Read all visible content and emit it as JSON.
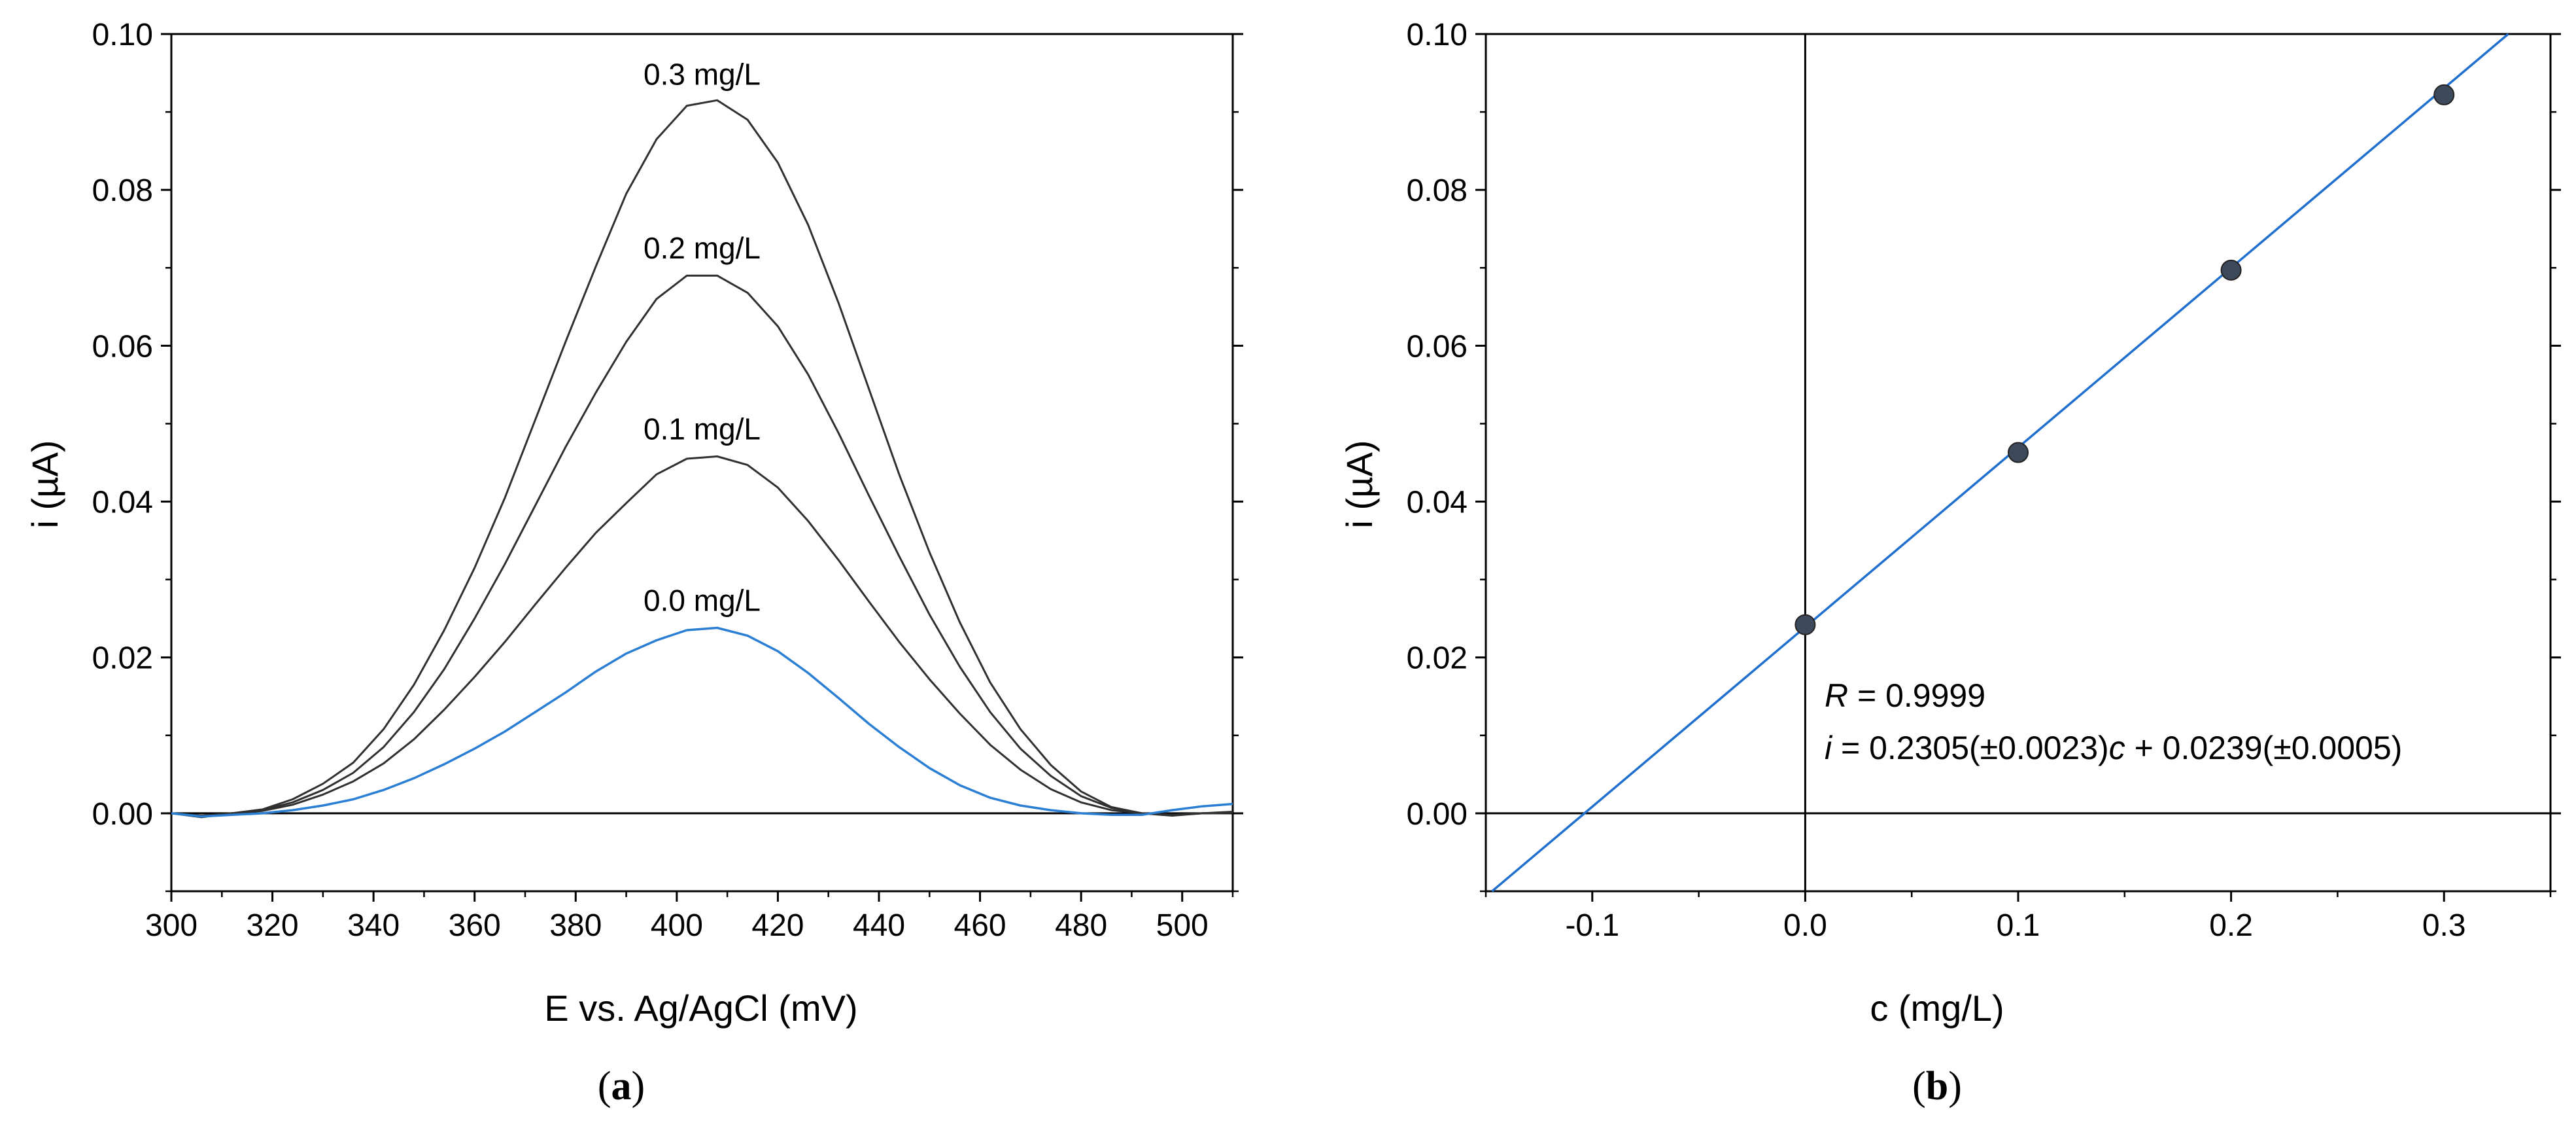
{
  "chart_data": [
    {
      "panel": "a",
      "panel_label": {
        "open": "(",
        "letter": "a",
        "close": ")"
      },
      "type": "line",
      "xlabel": "E vs. Ag/AgCl (mV)",
      "ylabel": "i (µA)",
      "xlim": [
        300,
        510
      ],
      "ylim": [
        -0.01,
        0.1
      ],
      "xticks": [
        300,
        320,
        340,
        360,
        380,
        400,
        420,
        440,
        460,
        480,
        500
      ],
      "xtick_labels": [
        "300",
        "320",
        "340",
        "360",
        "380",
        "400",
        "420",
        "440",
        "460",
        "480",
        "500"
      ],
      "yticks": [
        0.0,
        0.02,
        0.04,
        0.06,
        0.08,
        0.1
      ],
      "ytick_labels": [
        "0.00",
        "0.02",
        "0.04",
        "0.06",
        "0.08",
        "0.10"
      ],
      "zero_line": true,
      "series": [
        {
          "name": "0.3 mg/L",
          "color": "#303030",
          "x": [
            300,
            306,
            312,
            318,
            324,
            330,
            336,
            342,
            348,
            354,
            360,
            366,
            372,
            378,
            384,
            390,
            396,
            402,
            408,
            414,
            420,
            426,
            432,
            438,
            444,
            450,
            456,
            462,
            468,
            474,
            480,
            486,
            492,
            498,
            504,
            510
          ],
          "y": [
            0.0,
            -0.0005,
            0.0,
            0.0005,
            0.0018,
            0.0038,
            0.0065,
            0.0108,
            0.0165,
            0.0235,
            0.0315,
            0.0405,
            0.0505,
            0.0605,
            0.0702,
            0.0795,
            0.0865,
            0.0908,
            0.0915,
            0.089,
            0.0835,
            0.0755,
            0.0655,
            0.0545,
            0.0435,
            0.0335,
            0.0245,
            0.0168,
            0.0108,
            0.0062,
            0.0028,
            0.0008,
            0.0,
            -0.0003,
            0.0,
            0.0002
          ]
        },
        {
          "name": "0.2 mg/L",
          "color": "#303030",
          "x": [
            300,
            306,
            312,
            318,
            324,
            330,
            336,
            342,
            348,
            354,
            360,
            366,
            372,
            378,
            384,
            390,
            396,
            402,
            408,
            414,
            420,
            426,
            432,
            438,
            444,
            450,
            456,
            462,
            468,
            474,
            480,
            486,
            492,
            498,
            504,
            510
          ],
          "y": [
            0.0,
            -0.0004,
            0.0,
            0.0004,
            0.0014,
            0.003,
            0.0052,
            0.0085,
            0.013,
            0.0185,
            0.025,
            0.032,
            0.0395,
            0.047,
            0.054,
            0.0605,
            0.066,
            0.069,
            0.069,
            0.0668,
            0.0625,
            0.0563,
            0.0488,
            0.0408,
            0.033,
            0.0255,
            0.0188,
            0.013,
            0.0083,
            0.0048,
            0.0022,
            0.0007,
            0.0,
            -0.0002,
            0.0,
            0.0001
          ]
        },
        {
          "name": "0.1 mg/L",
          "color": "#303030",
          "x": [
            300,
            306,
            312,
            318,
            324,
            330,
            336,
            342,
            348,
            354,
            360,
            366,
            372,
            378,
            384,
            390,
            396,
            402,
            408,
            414,
            420,
            426,
            432,
            438,
            444,
            450,
            456,
            462,
            468,
            474,
            480,
            486,
            492,
            498,
            504,
            510
          ],
          "y": [
            0.0,
            -0.0003,
            0.0,
            0.0003,
            0.0011,
            0.0024,
            0.0041,
            0.0064,
            0.0095,
            0.0133,
            0.0175,
            0.022,
            0.0268,
            0.0315,
            0.036,
            0.0398,
            0.0435,
            0.0455,
            0.0458,
            0.0447,
            0.0418,
            0.0375,
            0.0325,
            0.0272,
            0.022,
            0.0172,
            0.0128,
            0.0088,
            0.0056,
            0.0031,
            0.0014,
            0.0004,
            0.0,
            -0.0002,
            0.0,
            0.0001
          ]
        },
        {
          "name": "0.0 mg/L",
          "color": "#2a7fd4",
          "x": [
            300,
            306,
            312,
            318,
            324,
            330,
            336,
            342,
            348,
            354,
            360,
            366,
            372,
            378,
            384,
            390,
            396,
            402,
            408,
            414,
            420,
            426,
            432,
            438,
            444,
            450,
            456,
            462,
            468,
            474,
            480,
            486,
            492,
            498,
            504,
            510
          ],
          "y": [
            0.0,
            -0.0004,
            -0.0002,
            0.0,
            0.0004,
            0.001,
            0.0018,
            0.003,
            0.0045,
            0.0063,
            0.0083,
            0.0105,
            0.013,
            0.0155,
            0.0182,
            0.0205,
            0.0222,
            0.0235,
            0.0238,
            0.0228,
            0.0208,
            0.018,
            0.0148,
            0.0115,
            0.0085,
            0.0058,
            0.0036,
            0.002,
            0.001,
            0.0004,
            0.0,
            -0.0002,
            -0.0002,
            0.0004,
            0.0009,
            0.0012
          ]
        }
      ],
      "annotations": [
        {
          "text": "0.3 mg/L",
          "x": 405,
          "y": 0.0935
        },
        {
          "text": "0.2 mg/L",
          "x": 405,
          "y": 0.0712
        },
        {
          "text": "0.1 mg/L",
          "x": 405,
          "y": 0.048
        },
        {
          "text": "0.0 mg/L",
          "x": 405,
          "y": 0.026
        }
      ]
    },
    {
      "panel": "b",
      "panel_label": {
        "open": "(",
        "letter": "b",
        "close": ")"
      },
      "type": "scatter",
      "xlabel": "c (mg/L)",
      "ylabel": "i (µA)",
      "xlim": [
        -0.15,
        0.35
      ],
      "ylim": [
        -0.01,
        0.1
      ],
      "xticks": [
        -0.1,
        0.0,
        0.1,
        0.2,
        0.3
      ],
      "xtick_labels": [
        "-0.1",
        "0.0",
        "0.1",
        "0.2",
        "0.3"
      ],
      "yticks": [
        0.0,
        0.02,
        0.04,
        0.06,
        0.08,
        0.1
      ],
      "ytick_labels": [
        "0.00",
        "0.02",
        "0.04",
        "0.06",
        "0.08",
        "0.10"
      ],
      "zero_lines": true,
      "points": {
        "name": "measured",
        "color": "#3d4a5c",
        "x": [
          0.0,
          0.1,
          0.2,
          0.3
        ],
        "y": [
          0.0242,
          0.0463,
          0.0697,
          0.0922
        ]
      },
      "fit_line": {
        "slope": 0.2305,
        "intercept": 0.0239,
        "color": "#1f6fcf"
      },
      "annotation": {
        "r_prefix": "R",
        "r_text": " = 0.9999",
        "eq_i": "i",
        "eq_mid": " = 0.2305(±0.0023)",
        "eq_c": "c",
        "eq_end": " + 0.0239(±0.0005)"
      }
    }
  ]
}
